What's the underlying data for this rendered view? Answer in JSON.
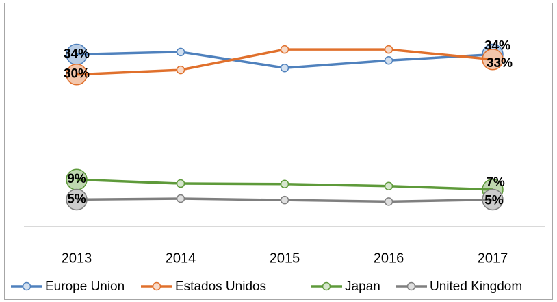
{
  "chart_data": {
    "type": "line",
    "categories": [
      "2013",
      "2014",
      "2015",
      "2016",
      "2017"
    ],
    "ylim": [
      0,
      42
    ],
    "series": [
      {
        "name": "Europe Union",
        "color": "#4f81bd",
        "values": [
          34,
          34.5,
          31.3,
          32.8,
          34
        ],
        "value_labels": [
          "34%",
          null,
          null,
          null,
          "34%"
        ]
      },
      {
        "name": "Estados Unidos",
        "color": "#e0702c",
        "values": [
          30,
          30.9,
          35,
          35,
          33
        ],
        "value_labels": [
          "30%",
          null,
          null,
          null,
          "33%"
        ]
      },
      {
        "name": "Japan",
        "color": "#5e9a3a",
        "values": [
          9,
          8.2,
          8.1,
          7.7,
          7
        ],
        "value_labels": [
          "9%",
          null,
          null,
          null,
          "7%"
        ]
      },
      {
        "name": "United Kingdom",
        "color": "#7f7f7f",
        "values": [
          5,
          5.2,
          4.9,
          4.6,
          5
        ],
        "value_labels": [
          "5%",
          null,
          null,
          null,
          "5%"
        ]
      }
    ]
  }
}
